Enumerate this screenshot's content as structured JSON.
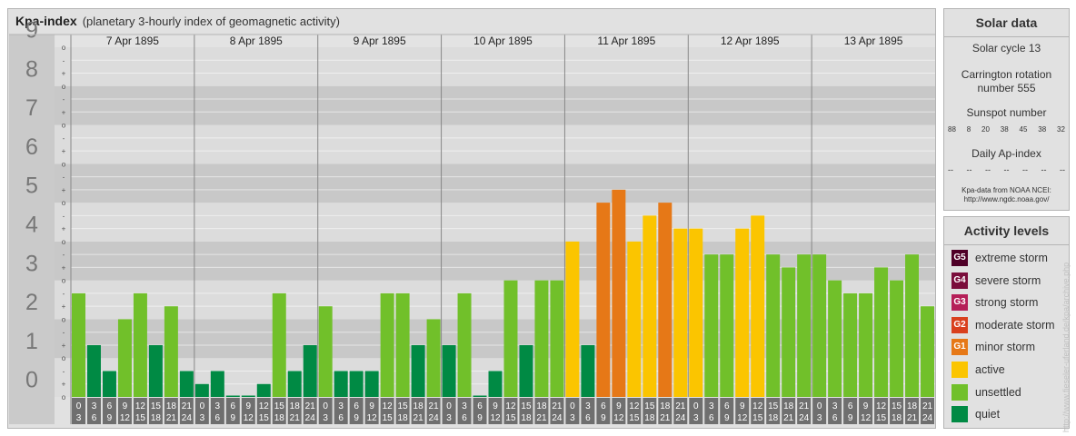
{
  "header": {
    "title": "Kpa-index",
    "subtitle": "(planetary 3-hourly index of geomagnetic activity)"
  },
  "chart_data": {
    "type": "bar",
    "ylim": [
      0,
      9
    ],
    "y_tick_labels": [
      "0",
      "1",
      "2",
      "3",
      "4",
      "5",
      "6",
      "7",
      "8",
      "9"
    ],
    "minor_tick_labels": [
      "-",
      "o",
      "+"
    ],
    "days": [
      "7 Apr 1895",
      "8 Apr 1895",
      "9 Apr 1895",
      "10 Apr 1895",
      "11 Apr 1895",
      "12 Apr 1895",
      "13 Apr 1895"
    ],
    "interval_labels": [
      [
        "0",
        "3"
      ],
      [
        "3",
        "6"
      ],
      [
        "6",
        "9"
      ],
      [
        "9",
        "12"
      ],
      [
        "12",
        "15"
      ],
      [
        "15",
        "18"
      ],
      [
        "18",
        "21"
      ],
      [
        "21",
        "24"
      ]
    ],
    "values": [
      [
        2.667,
        1.333,
        0.667,
        2.0,
        2.667,
        1.333,
        2.333,
        0.667
      ],
      [
        0.333,
        0.667,
        0.0,
        0.0,
        0.333,
        2.667,
        0.667,
        1.333
      ],
      [
        2.333,
        0.667,
        0.667,
        0.667,
        2.667,
        2.667,
        1.333,
        2.0
      ],
      [
        1.333,
        2.667,
        0.0,
        0.667,
        3.0,
        1.333,
        3.0,
        3.0
      ],
      [
        4.0,
        1.333,
        5.0,
        5.333,
        4.0,
        4.667,
        5.0,
        4.333
      ],
      [
        4.333,
        3.667,
        3.667,
        4.333,
        4.667,
        3.667,
        3.333,
        3.667
      ],
      [
        3.667,
        3.0,
        2.667,
        2.667,
        3.333,
        3.0,
        3.667,
        2.333
      ]
    ],
    "colors": {
      "quiet": "#008a44",
      "unsettled": "#71c02a",
      "active": "#fbc500",
      "minor_storm": "#e67817",
      "moderate_storm": "#d9401e"
    }
  },
  "solar": {
    "title": "Solar data",
    "cycle": "Solar cycle 13",
    "carrington_line1": "Carrington rotation",
    "carrington_line2": "number 555",
    "sunspot_title": "Sunspot number",
    "sunspot_values": [
      "88",
      "8",
      "20",
      "38",
      "45",
      "38",
      "32"
    ],
    "ap_title": "Daily Ap-index",
    "ap_values": [
      "--",
      "--",
      "--",
      "--",
      "--",
      "--",
      "--"
    ],
    "source_line1": "Kpa-data from NOAA NCEI:",
    "source_line2": "http://www.ngdc.noaa.gov/"
  },
  "activity": {
    "title": "Activity levels",
    "levels": [
      {
        "code": "G5",
        "label": "extreme storm",
        "color": "#4f0027"
      },
      {
        "code": "G4",
        "label": "severe storm",
        "color": "#7a0d3b"
      },
      {
        "code": "G3",
        "label": "strong storm",
        "color": "#b51f58"
      },
      {
        "code": "G2",
        "label": "moderate storm",
        "color": "#d9401e"
      },
      {
        "code": "G1",
        "label": "minor storm",
        "color": "#e67817"
      },
      {
        "code": "",
        "label": "active",
        "color": "#fbc500"
      },
      {
        "code": "",
        "label": "unsettled",
        "color": "#71c02a"
      },
      {
        "code": "",
        "label": "quiet",
        "color": "#008a44"
      }
    ]
  },
  "credit": "http://www.fieseler-uferland.de/kpa/archive.php"
}
